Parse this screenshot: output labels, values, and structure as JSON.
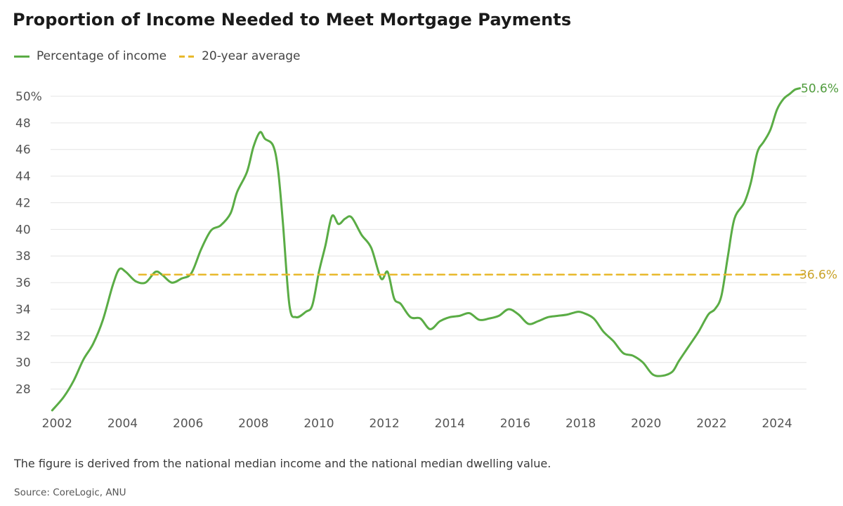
{
  "title": "Proportion of Income Needed to Meet Mortgage Payments",
  "legend": {
    "series_label": "Percentage of income",
    "average_label": "20-year average"
  },
  "footnote": "The figure is derived from the national median income and the national median dwelling value.",
  "source": "Source: CoreLogic, ANU",
  "chart_data": {
    "type": "line",
    "title": "Proportion of Income Needed to Meet Mortgage Payments",
    "xlim": [
      2001.8,
      2024.9
    ],
    "ylim": [
      26.5,
      51
    ],
    "grid": true,
    "legend_position": "top-left",
    "x_ticks": [
      2002,
      2004,
      2006,
      2008,
      2010,
      2012,
      2014,
      2016,
      2018,
      2020,
      2022,
      2024
    ],
    "y_ticks": [
      {
        "value": 28,
        "label": "28"
      },
      {
        "value": 30,
        "label": "30"
      },
      {
        "value": 32,
        "label": "32"
      },
      {
        "value": 34,
        "label": "34"
      },
      {
        "value": 36,
        "label": "36"
      },
      {
        "value": 38,
        "label": "38"
      },
      {
        "value": 40,
        "label": "40"
      },
      {
        "value": 42,
        "label": "42"
      },
      {
        "value": 44,
        "label": "44"
      },
      {
        "value": 46,
        "label": "46"
      },
      {
        "value": 48,
        "label": "48"
      },
      {
        "value": 50,
        "label": "50%"
      }
    ],
    "series": [
      {
        "name": "Percentage of income",
        "color": "#5aac45",
        "end_label": "50.6%",
        "x": [
          2001.85,
          2002.2,
          2002.5,
          2002.8,
          2003.1,
          2003.4,
          2003.7,
          2003.9,
          2004.1,
          2004.4,
          2004.7,
          2005.0,
          2005.2,
          2005.5,
          2005.8,
          2006.1,
          2006.4,
          2006.7,
          2007.0,
          2007.3,
          2007.5,
          2007.8,
          2008.0,
          2008.2,
          2008.35,
          2008.6,
          2008.75,
          2008.9,
          2009.1,
          2009.3,
          2009.6,
          2009.8,
          2010.0,
          2010.2,
          2010.4,
          2010.6,
          2010.8,
          2011.0,
          2011.3,
          2011.6,
          2011.9,
          2012.1,
          2012.3,
          2012.5,
          2012.8,
          2013.1,
          2013.4,
          2013.7,
          2014.0,
          2014.3,
          2014.6,
          2014.9,
          2015.2,
          2015.5,
          2015.8,
          2016.1,
          2016.4,
          2016.7,
          2017.0,
          2017.3,
          2017.6,
          2017.9,
          2018.1,
          2018.4,
          2018.7,
          2019.0,
          2019.3,
          2019.6,
          2019.9,
          2020.2,
          2020.5,
          2020.8,
          2021.0,
          2021.3,
          2021.6,
          2021.9,
          2022.1,
          2022.3,
          2022.5,
          2022.7,
          2023.0,
          2023.2,
          2023.4,
          2023.6,
          2023.8,
          2024.0,
          2024.2,
          2024.4,
          2024.55,
          2024.7
        ],
        "y": [
          26.4,
          27.4,
          28.6,
          30.2,
          31.4,
          33.2,
          35.8,
          37.0,
          36.8,
          36.1,
          36.0,
          36.8,
          36.6,
          36.0,
          36.3,
          36.7,
          38.5,
          39.9,
          40.3,
          41.2,
          42.8,
          44.3,
          46.2,
          47.3,
          46.8,
          46.3,
          44.5,
          40.5,
          34.3,
          33.4,
          33.8,
          34.3,
          36.8,
          38.8,
          41.0,
          40.4,
          40.8,
          40.9,
          39.6,
          38.6,
          36.3,
          36.8,
          34.8,
          34.4,
          33.4,
          33.3,
          32.5,
          33.1,
          33.4,
          33.5,
          33.7,
          33.2,
          33.3,
          33.5,
          34.0,
          33.6,
          32.9,
          33.1,
          33.4,
          33.5,
          33.6,
          33.8,
          33.7,
          33.3,
          32.3,
          31.6,
          30.7,
          30.5,
          30.0,
          29.1,
          29.0,
          29.3,
          30.1,
          31.2,
          32.3,
          33.6,
          34.0,
          35.0,
          38.0,
          40.8,
          42.0,
          43.5,
          45.8,
          46.6,
          47.5,
          49.0,
          49.8,
          50.2,
          50.5,
          50.6
        ]
      },
      {
        "name": "20-year average",
        "color": "#e8b92c",
        "dashed": true,
        "end_label": "36.6%",
        "x": [
          2004.5,
          2024.9
        ],
        "y": [
          36.6,
          36.6
        ]
      }
    ]
  }
}
